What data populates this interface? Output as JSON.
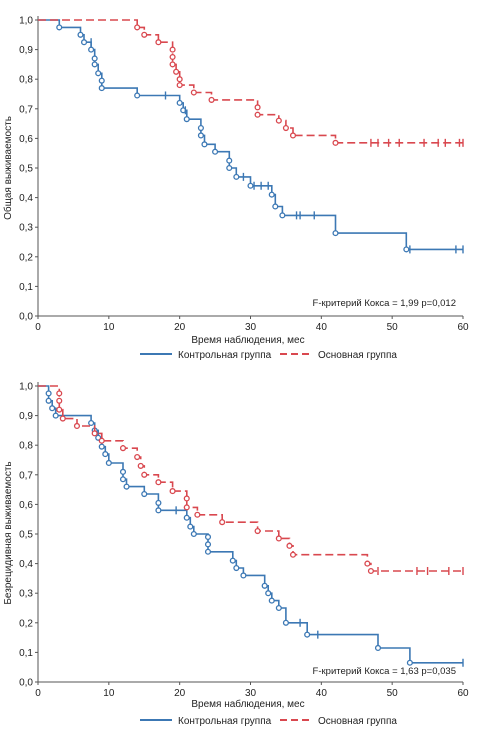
{
  "colors": {
    "control": "#3c78b4",
    "main": "#d9484f",
    "axis": "#555555"
  },
  "legend": {
    "control_label": "Контрольная группа",
    "main_label": "Основная группа"
  },
  "chart_data": [
    {
      "type": "line",
      "xlabel": "Время наблюдения, мес",
      "ylabel": "Общая выживаемость",
      "xlim": [
        0,
        60
      ],
      "ylim": [
        0,
        1
      ],
      "xticks": [
        "0",
        "10",
        "20",
        "30",
        "40",
        "50",
        "60"
      ],
      "yticks": [
        "0,0",
        "0,1",
        "0,2",
        "0,3",
        "0,4",
        "0,5",
        "0,6",
        "0,7",
        "0,8",
        "0,9",
        "1,0"
      ],
      "annotation": "F-критерий Кокса = 1,99 p=0,012",
      "legend_position": "bottom",
      "series": [
        {
          "name": "Контрольная группа",
          "color": "#3c78b4",
          "dash": false,
          "steps": [
            [
              0,
              1.0
            ],
            [
              3,
              0.975
            ],
            [
              6,
              0.95
            ],
            [
              6.5,
              0.925
            ],
            [
              7.5,
              0.9
            ],
            [
              8,
              0.87
            ],
            [
              8,
              0.85
            ],
            [
              8.5,
              0.82
            ],
            [
              9,
              0.795
            ],
            [
              9,
              0.77
            ],
            [
              14,
              0.745
            ],
            [
              20,
              0.72
            ],
            [
              20.5,
              0.695
            ],
            [
              21,
              0.665
            ],
            [
              23,
              0.635
            ],
            [
              23,
              0.61
            ],
            [
              23.5,
              0.58
            ],
            [
              25,
              0.555
            ],
            [
              27,
              0.525
            ],
            [
              27,
              0.5
            ],
            [
              28,
              0.47
            ],
            [
              30,
              0.44
            ],
            [
              33,
              0.41
            ],
            [
              33.5,
              0.37
            ],
            [
              34.5,
              0.34
            ],
            [
              42,
              0.28
            ],
            [
              52,
              0.225
            ],
            [
              60,
              0.225
            ]
          ],
          "events": [
            [
              3,
              0.975
            ],
            [
              6,
              0.95
            ],
            [
              6.5,
              0.925
            ],
            [
              7.5,
              0.9
            ],
            [
              8,
              0.87
            ],
            [
              8,
              0.85
            ],
            [
              8.5,
              0.82
            ],
            [
              9,
              0.795
            ],
            [
              9,
              0.77
            ],
            [
              14,
              0.745
            ],
            [
              20,
              0.72
            ],
            [
              20.5,
              0.695
            ],
            [
              21,
              0.665
            ],
            [
              23,
              0.635
            ],
            [
              23,
              0.61
            ],
            [
              23.5,
              0.58
            ],
            [
              25,
              0.555
            ],
            [
              27,
              0.525
            ],
            [
              27,
              0.5
            ],
            [
              28,
              0.47
            ],
            [
              30,
              0.44
            ],
            [
              33,
              0.41
            ],
            [
              33.5,
              0.37
            ],
            [
              34.5,
              0.34
            ],
            [
              42,
              0.28
            ],
            [
              52,
              0.225
            ]
          ],
          "censored": [
            [
              7.5,
              0.925
            ],
            [
              18,
              0.745
            ],
            [
              20.8,
              0.695
            ],
            [
              29,
              0.47
            ],
            [
              30.5,
              0.44
            ],
            [
              31.5,
              0.44
            ],
            [
              32.5,
              0.44
            ],
            [
              36.5,
              0.34
            ],
            [
              37,
              0.34
            ],
            [
              39,
              0.34
            ],
            [
              52.5,
              0.225
            ],
            [
              59,
              0.225
            ],
            [
              60,
              0.225
            ]
          ]
        },
        {
          "name": "Основная группа",
          "color": "#d9484f",
          "dash": true,
          "steps": [
            [
              0,
              1.0
            ],
            [
              14,
              0.975
            ],
            [
              15,
              0.95
            ],
            [
              17,
              0.925
            ],
            [
              19,
              0.9
            ],
            [
              19,
              0.875
            ],
            [
              19,
              0.85
            ],
            [
              19.5,
              0.825
            ],
            [
              20,
              0.8
            ],
            [
              20,
              0.78
            ],
            [
              22,
              0.755
            ],
            [
              24.5,
              0.73
            ],
            [
              31,
              0.705
            ],
            [
              31,
              0.68
            ],
            [
              34,
              0.66
            ],
            [
              35,
              0.635
            ],
            [
              36,
              0.61
            ],
            [
              42,
              0.585
            ],
            [
              60,
              0.585
            ]
          ],
          "events": [
            [
              14,
              0.975
            ],
            [
              15,
              0.95
            ],
            [
              17,
              0.925
            ],
            [
              19,
              0.9
            ],
            [
              19,
              0.875
            ],
            [
              19,
              0.85
            ],
            [
              19.5,
              0.825
            ],
            [
              20,
              0.8
            ],
            [
              20,
              0.78
            ],
            [
              22,
              0.755
            ],
            [
              24.5,
              0.73
            ],
            [
              31,
              0.705
            ],
            [
              31,
              0.68
            ],
            [
              34,
              0.66
            ],
            [
              35,
              0.635
            ],
            [
              36,
              0.61
            ],
            [
              42,
              0.585
            ]
          ],
          "censored": [
            [
              47,
              0.585
            ],
            [
              48,
              0.585
            ],
            [
              49.5,
              0.585
            ],
            [
              51,
              0.585
            ],
            [
              54.5,
              0.585
            ],
            [
              56.5,
              0.585
            ],
            [
              57.5,
              0.585
            ],
            [
              59.5,
              0.585
            ],
            [
              60,
              0.585
            ]
          ]
        }
      ]
    },
    {
      "type": "line",
      "xlabel": "Время наблюдения, мес",
      "ylabel": "Безрецидивная выживаемость",
      "xlim": [
        0,
        60
      ],
      "ylim": [
        0,
        1
      ],
      "xticks": [
        "0",
        "10",
        "20",
        "30",
        "40",
        "50",
        "60"
      ],
      "yticks": [
        "0,0",
        "0,1",
        "0,2",
        "0,3",
        "0,4",
        "0,5",
        "0,6",
        "0,7",
        "0,8",
        "0,9",
        "1,0"
      ],
      "annotation": "F-критерий Кокса = 1,63 p=0,035",
      "legend_position": "bottom",
      "series": [
        {
          "name": "Контрольная группа",
          "color": "#3c78b4",
          "dash": false,
          "steps": [
            [
              0,
              1.0
            ],
            [
              1.5,
              0.975
            ],
            [
              1.5,
              0.95
            ],
            [
              2,
              0.925
            ],
            [
              2.5,
              0.9
            ],
            [
              7.5,
              0.875
            ],
            [
              8,
              0.85
            ],
            [
              8.5,
              0.825
            ],
            [
              9,
              0.795
            ],
            [
              9.5,
              0.77
            ],
            [
              10,
              0.74
            ],
            [
              12,
              0.71
            ],
            [
              12,
              0.685
            ],
            [
              12.5,
              0.66
            ],
            [
              15,
              0.635
            ],
            [
              17,
              0.605
            ],
            [
              17,
              0.58
            ],
            [
              21,
              0.555
            ],
            [
              21.5,
              0.525
            ],
            [
              22,
              0.5
            ],
            [
              24,
              0.49
            ],
            [
              24,
              0.465
            ],
            [
              24,
              0.44
            ],
            [
              27.5,
              0.41
            ],
            [
              28,
              0.385
            ],
            [
              29,
              0.36
            ],
            [
              32,
              0.325
            ],
            [
              32.5,
              0.3
            ],
            [
              33,
              0.275
            ],
            [
              34,
              0.25
            ],
            [
              35,
              0.2
            ],
            [
              38,
              0.16
            ],
            [
              48,
              0.115
            ],
            [
              52.5,
              0.065
            ],
            [
              60,
              0.065
            ]
          ],
          "events": [
            [
              1.5,
              0.975
            ],
            [
              1.5,
              0.95
            ],
            [
              2,
              0.925
            ],
            [
              2.5,
              0.9
            ],
            [
              7.5,
              0.875
            ],
            [
              8,
              0.85
            ],
            [
              8.5,
              0.825
            ],
            [
              9,
              0.795
            ],
            [
              9.5,
              0.77
            ],
            [
              10,
              0.74
            ],
            [
              12,
              0.71
            ],
            [
              12,
              0.685
            ],
            [
              12.5,
              0.66
            ],
            [
              15,
              0.635
            ],
            [
              17,
              0.605
            ],
            [
              17,
              0.58
            ],
            [
              21,
              0.555
            ],
            [
              21.5,
              0.525
            ],
            [
              22,
              0.5
            ],
            [
              24,
              0.49
            ],
            [
              24,
              0.465
            ],
            [
              24,
              0.44
            ],
            [
              27.5,
              0.41
            ],
            [
              28,
              0.385
            ],
            [
              29,
              0.36
            ],
            [
              32,
              0.325
            ],
            [
              32.5,
              0.3
            ],
            [
              33,
              0.275
            ],
            [
              34,
              0.25
            ],
            [
              35,
              0.2
            ],
            [
              38,
              0.16
            ],
            [
              48,
              0.115
            ],
            [
              52.5,
              0.065
            ]
          ],
          "censored": [
            [
              19.5,
              0.58
            ],
            [
              37,
              0.2
            ],
            [
              39.5,
              0.16
            ],
            [
              60,
              0.065
            ]
          ]
        },
        {
          "name": "Основная группа",
          "color": "#d9484f",
          "dash": true,
          "steps": [
            [
              0,
              1.0
            ],
            [
              3,
              0.975
            ],
            [
              3,
              0.95
            ],
            [
              3,
              0.92
            ],
            [
              3.5,
              0.89
            ],
            [
              5.5,
              0.865
            ],
            [
              8,
              0.84
            ],
            [
              9,
              0.815
            ],
            [
              12,
              0.79
            ],
            [
              14,
              0.76
            ],
            [
              14.5,
              0.73
            ],
            [
              15,
              0.7
            ],
            [
              17,
              0.675
            ],
            [
              19,
              0.645
            ],
            [
              21,
              0.62
            ],
            [
              21,
              0.59
            ],
            [
              22.5,
              0.565
            ],
            [
              26,
              0.54
            ],
            [
              31,
              0.51
            ],
            [
              34,
              0.485
            ],
            [
              35.5,
              0.46
            ],
            [
              36,
              0.43
            ],
            [
              46.5,
              0.4
            ],
            [
              47,
              0.375
            ],
            [
              60,
              0.375
            ]
          ],
          "events": [
            [
              3,
              0.975
            ],
            [
              3,
              0.95
            ],
            [
              3,
              0.92
            ],
            [
              3.5,
              0.89
            ],
            [
              5.5,
              0.865
            ],
            [
              8,
              0.84
            ],
            [
              9,
              0.815
            ],
            [
              12,
              0.79
            ],
            [
              14,
              0.76
            ],
            [
              14.5,
              0.73
            ],
            [
              15,
              0.7
            ],
            [
              17,
              0.675
            ],
            [
              19,
              0.645
            ],
            [
              21,
              0.62
            ],
            [
              21,
              0.59
            ],
            [
              22.5,
              0.565
            ],
            [
              26,
              0.54
            ],
            [
              31,
              0.51
            ],
            [
              34,
              0.485
            ],
            [
              35.5,
              0.46
            ],
            [
              36,
              0.43
            ],
            [
              46.5,
              0.4
            ],
            [
              47,
              0.375
            ]
          ],
          "censored": [
            [
              48,
              0.375
            ],
            [
              53.5,
              0.375
            ],
            [
              55,
              0.375
            ],
            [
              58,
              0.375
            ],
            [
              60,
              0.375
            ]
          ]
        }
      ]
    }
  ]
}
